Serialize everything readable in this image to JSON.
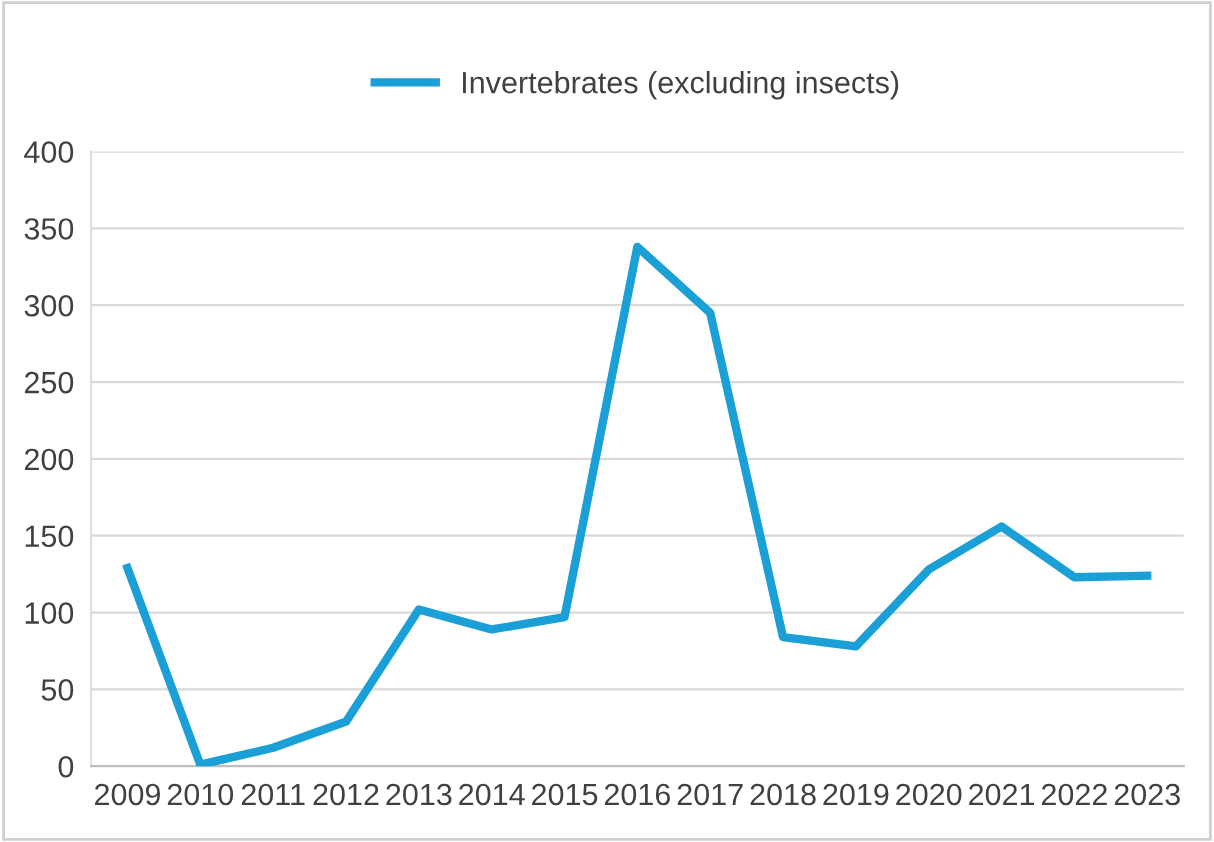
{
  "chart_data": {
    "type": "line",
    "categories": [
      "2009",
      "2010",
      "2011",
      "2012",
      "2013",
      "2014",
      "2015",
      "2016",
      "2017",
      "2018",
      "2019",
      "2020",
      "2021",
      "2022",
      "2023"
    ],
    "series": [
      {
        "name": "Invertebrates (excluding insects)",
        "color": "#1a9fd6",
        "values": [
          129,
          1,
          12,
          29,
          102,
          89,
          97,
          338,
          295,
          84,
          78,
          128,
          156,
          123,
          124
        ]
      }
    ],
    "ylim": [
      0,
      400
    ],
    "yticks": [
      0,
      50,
      100,
      150,
      200,
      250,
      300,
      350,
      400
    ],
    "grid": "y",
    "legend": "top",
    "marker": "none",
    "line_style": "solid"
  }
}
